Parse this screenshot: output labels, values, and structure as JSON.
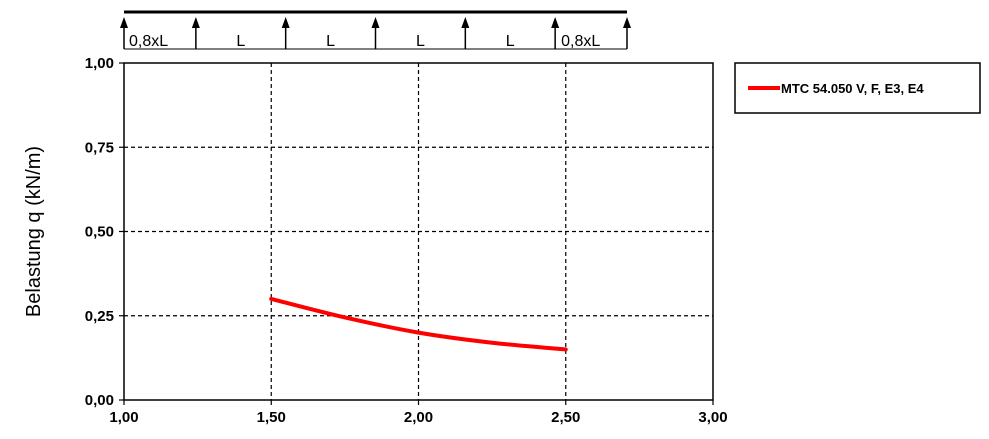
{
  "chart_data": {
    "type": "line",
    "xlabel": "",
    "ylabel": "Belastung q (kN/m)",
    "xlim": [
      1.0,
      3.0
    ],
    "ylim": [
      0.0,
      1.0
    ],
    "x_ticks": [
      "1,00",
      "1,50",
      "2,00",
      "2,50",
      "3,00"
    ],
    "y_ticks": [
      "0,00",
      "0,25",
      "0,50",
      "0,75",
      "1,00"
    ],
    "x_tick_values": [
      1.0,
      1.5,
      2.0,
      2.5,
      3.0
    ],
    "y_tick_values": [
      0.0,
      0.25,
      0.5,
      0.75,
      1.0
    ],
    "grid": true,
    "legend_position": "top-right",
    "series": [
      {
        "name": "MTC 54.050 V, F, E3, E4",
        "color": "#ff0000",
        "x": [
          1.5,
          1.75,
          2.0,
          2.25,
          2.5
        ],
        "y": [
          0.3,
          0.245,
          0.2,
          0.17,
          0.15
        ]
      }
    ],
    "beam_diagram": {
      "span_labels": [
        "0,8xL",
        "L",
        "L",
        "L",
        "L",
        "0,8xL"
      ],
      "span_weights": [
        0.8,
        1,
        1,
        1,
        1,
        0.8
      ]
    }
  }
}
